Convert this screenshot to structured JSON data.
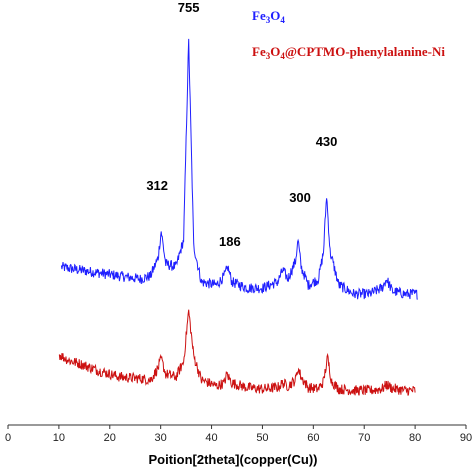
{
  "chart_data": {
    "type": "line",
    "title": "",
    "xlabel": "Poition[2theta](copper(Cu))",
    "ylabel": "",
    "xlim": [
      0,
      90
    ],
    "xticks": [
      "0",
      "10",
      "20",
      "30",
      "40",
      "50",
      "60",
      "70",
      "80",
      "90"
    ],
    "y_axis_visible": false,
    "grid": false,
    "legend_position": "top-right",
    "annotations": [
      {
        "text": "755",
        "x": 35.5
      },
      {
        "text": "312",
        "x": 30.1
      },
      {
        "text": "186",
        "x": 43.2
      },
      {
        "text": "300",
        "x": 57.0
      },
      {
        "text": "430",
        "x": 62.6
      }
    ],
    "series": [
      {
        "name": "Fe3O4",
        "name_parts": [
          "Fe",
          "3",
          "O",
          "4"
        ],
        "color": "#1f1fff",
        "x": [
          10.5,
          14,
          18,
          22,
          26,
          28,
          29.5,
          30.1,
          31,
          33,
          34.5,
          35.5,
          36.5,
          38,
          41,
          42.5,
          43.2,
          44,
          47,
          50,
          53,
          54,
          55,
          56.5,
          57,
          57.6,
          59,
          61,
          62,
          62.6,
          63.3,
          65,
          68,
          71,
          73.5,
          74.4,
          75.5,
          78,
          80.5
        ],
        "y": [
          0.17,
          0.16,
          0.15,
          0.14,
          0.13,
          0.14,
          0.2,
          0.29,
          0.18,
          0.17,
          0.26,
          0.92,
          0.24,
          0.12,
          0.11,
          0.14,
          0.17,
          0.12,
          0.1,
          0.1,
          0.12,
          0.16,
          0.13,
          0.19,
          0.26,
          0.17,
          0.11,
          0.13,
          0.22,
          0.41,
          0.22,
          0.11,
          0.08,
          0.08,
          0.1,
          0.13,
          0.09,
          0.08,
          0.08
        ]
      },
      {
        "name": "Fe3O4@CPTMO-phenylalanine-Ni",
        "name_parts": [
          "Fe",
          "3",
          "O",
          "4",
          "@CPTMO-phenylalanine-Ni"
        ],
        "color": "#cc1111",
        "x": [
          10,
          12,
          14,
          18,
          22,
          26,
          28,
          29.5,
          30.1,
          31,
          33,
          34.5,
          35.5,
          36.5,
          38,
          41,
          42.5,
          43,
          44,
          47,
          50,
          53,
          54,
          55,
          56.5,
          57,
          57.6,
          59,
          61,
          62,
          62.8,
          63.6,
          65,
          68,
          71,
          73.5,
          74.4,
          75.5,
          78,
          80
        ],
        "y": [
          0.125,
          0.105,
          0.095,
          0.07,
          0.05,
          0.045,
          0.04,
          0.08,
          0.11,
          0.06,
          0.05,
          0.1,
          0.27,
          0.12,
          0.04,
          0.02,
          0.03,
          0.06,
          0.03,
          0.015,
          0.01,
          0.015,
          0.03,
          0.02,
          0.04,
          0.08,
          0.05,
          0.015,
          0.01,
          0.035,
          0.115,
          0.035,
          0.01,
          0.005,
          0.005,
          0.01,
          0.025,
          0.012,
          0.005,
          0.005
        ]
      }
    ]
  }
}
